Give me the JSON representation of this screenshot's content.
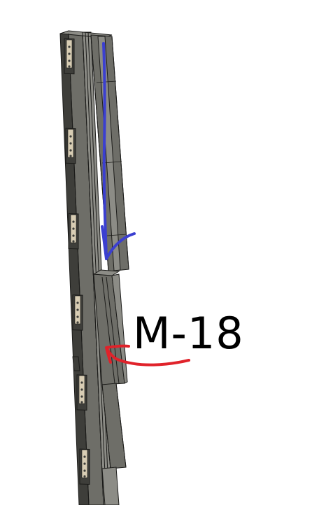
{
  "annotation": {
    "label": "M-18"
  },
  "colors": {
    "background": "#ffffff",
    "beam_body": "#6e6e68",
    "beam_dark": "#3e3e3a",
    "beam_light": "#8c8c86",
    "outline": "#1c1c1a",
    "bracket": "#d8cdb4",
    "arrow_down": "#3b3fd0",
    "arrow_pointer": "#e0222a",
    "label_text": "#000000"
  }
}
